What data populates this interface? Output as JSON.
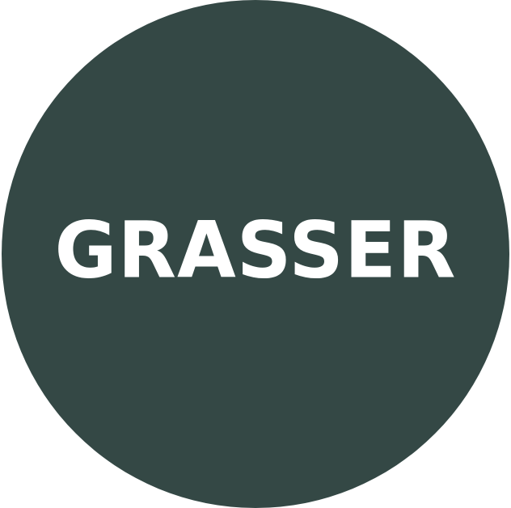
{
  "logo": {
    "text": "GRASSER",
    "circle_color": "#344845",
    "text_color": "#ffffff",
    "background_color": "#ffffff"
  }
}
